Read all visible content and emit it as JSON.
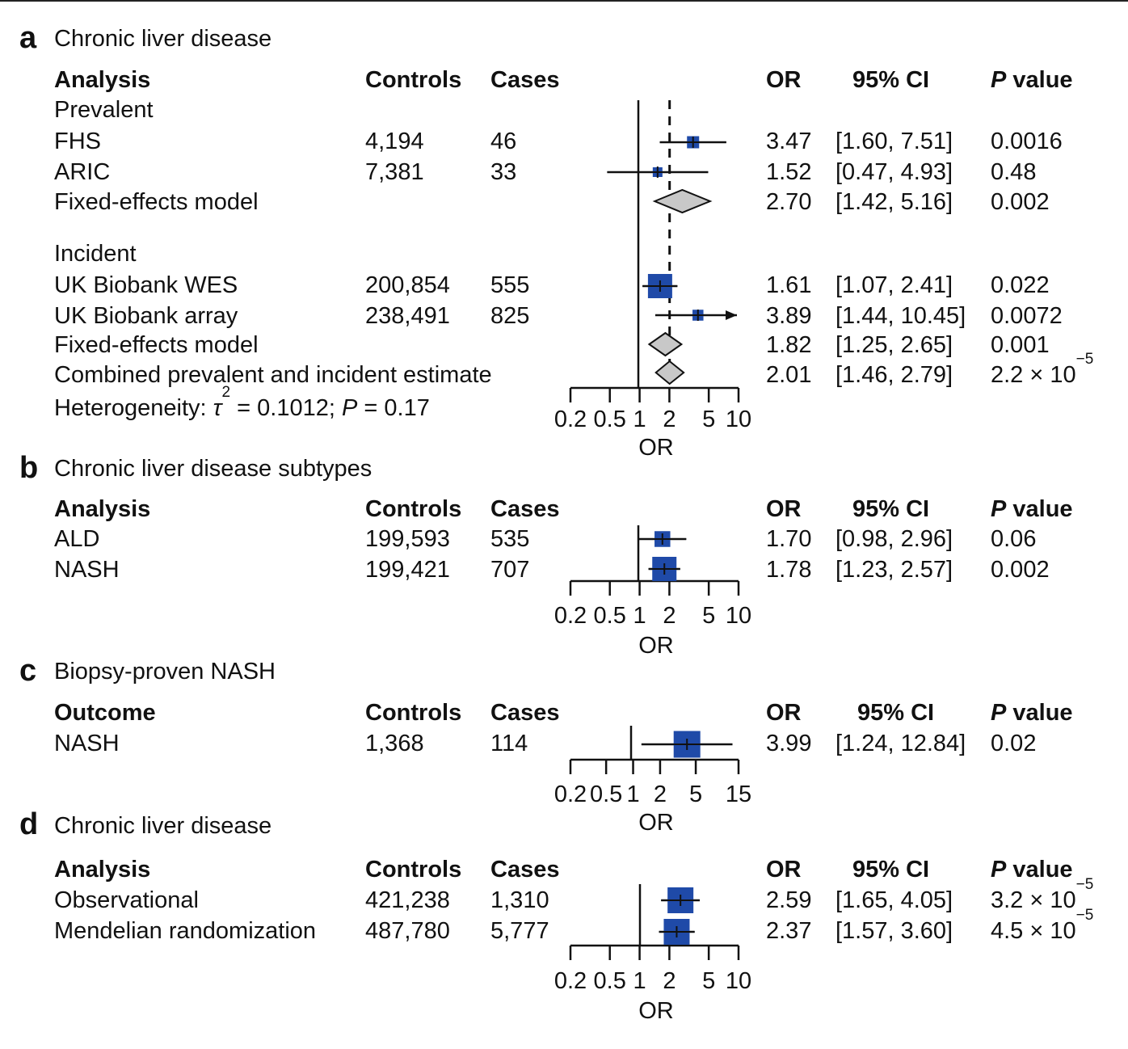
{
  "colors": {
    "square": "#1f4aa8",
    "diamond": "#c8c8c8",
    "line": "#111111"
  },
  "panels": [
    {
      "letter": "a",
      "title": "Chronic liver disease",
      "headers": {
        "label": "Analysis",
        "controls": "Controls",
        "cases": "Cases",
        "or": "OR",
        "ci": "95% CI",
        "p_bold": "P",
        "p_rest": " value"
      },
      "groups": [
        {
          "name": "Prevalent",
          "rows": [
            {
              "label": "FHS",
              "controls": "4,194",
              "cases": "46",
              "or": "3.47",
              "ci": "[1.60, 7.51]",
              "p": "0.0016"
            },
            {
              "label": "ARIC",
              "controls": "7,381",
              "cases": "33",
              "or": "1.52",
              "ci": "[0.47, 4.93]",
              "p": "0.48"
            },
            {
              "label": "Fixed-effects model",
              "controls": "",
              "cases": "",
              "or": "2.70",
              "ci": "[1.42, 5.16]",
              "p": "0.002"
            }
          ]
        },
        {
          "name": "Incident",
          "rows": [
            {
              "label": "UK Biobank WES",
              "controls": "200,854",
              "cases": "555",
              "or": "1.61",
              "ci": "[1.07, 2.41]",
              "p": "0.022"
            },
            {
              "label": "UK Biobank array",
              "controls": "238,491",
              "cases": "825",
              "or": "3.89",
              "ci": "[1.44, 10.45]",
              "p": "0.0072"
            },
            {
              "label": "Fixed-effects model",
              "controls": "",
              "cases": "",
              "or": "1.82",
              "ci": "[1.25, 2.65]",
              "p": "0.001"
            },
            {
              "label": "Combined prevalent and incident estimate",
              "controls": "",
              "cases": "",
              "or": "2.01",
              "ci": "[1.46, 2.79]",
              "p_base": "2.2 × 10",
              "p_exp": "−5"
            }
          ]
        }
      ],
      "heterogeneity": {
        "prefix": "Heterogeneity: ",
        "tau": "τ",
        "tau_exp": "2",
        "tau_value": " = 0.1012; ",
        "p_label": "P",
        "p_value": " = 0.17"
      },
      "axis_ticks": [
        "0.2",
        "0.5",
        "1",
        "2",
        "5",
        "10"
      ],
      "axis_label": "OR"
    },
    {
      "letter": "b",
      "title": "Chronic liver disease subtypes",
      "headers": {
        "label": "Analysis",
        "controls": "Controls",
        "cases": "Cases",
        "or": "OR",
        "ci": "95% CI",
        "p_bold": "P",
        "p_rest": " value"
      },
      "rows": [
        {
          "label": "ALD",
          "controls": "199,593",
          "cases": "535",
          "or": "1.70",
          "ci": "[0.98, 2.96]",
          "p": "0.06"
        },
        {
          "label": "NASH",
          "controls": "199,421",
          "cases": "707",
          "or": "1.78",
          "ci": "[1.23, 2.57]",
          "p": "0.002"
        }
      ],
      "axis_ticks": [
        "0.2",
        "0.5",
        "1",
        "2",
        "5",
        "10"
      ],
      "axis_label": "OR"
    },
    {
      "letter": "c",
      "title": "Biopsy-proven NASH",
      "headers": {
        "label": "Outcome",
        "controls": "Controls",
        "cases": "Cases",
        "or": "OR",
        "ci": "95% CI",
        "p_bold": "P",
        "p_rest": " value"
      },
      "rows": [
        {
          "label": "NASH",
          "controls": "1,368",
          "cases": "114",
          "or": "3.99",
          "ci": "[1.24, 12.84]",
          "p": "0.02"
        }
      ],
      "axis_ticks": [
        "0.2",
        "0.5",
        "1",
        "2",
        "5",
        "15"
      ],
      "axis_label": "OR"
    },
    {
      "letter": "d",
      "title": "Chronic liver disease",
      "headers": {
        "label": "Analysis",
        "controls": "Controls",
        "cases": "Cases",
        "or": "OR",
        "ci": "95% CI",
        "p_bold": "P",
        "p_rest": " value"
      },
      "rows": [
        {
          "label": "Observational",
          "controls": "421,238",
          "cases": "1,310",
          "or": "2.59",
          "ci": "[1.65, 4.05]",
          "p_base": "3.2 × 10",
          "p_exp": "−5"
        },
        {
          "label": "Mendelian randomization",
          "controls": "487,780",
          "cases": "5,777",
          "or": "2.37",
          "ci": "[1.57, 3.60]",
          "p_base": "4.5 × 10",
          "p_exp": "−5"
        }
      ],
      "axis_ticks": [
        "0.2",
        "0.5",
        "1",
        "2",
        "5",
        "10"
      ],
      "axis_label": "OR"
    }
  ],
  "chart_data": [
    {
      "type": "forest",
      "title": "Chronic liver disease",
      "xlabel": "OR",
      "xscale": "log",
      "xlim": [
        0.2,
        10
      ],
      "reference_line": 1,
      "pooled_reference": 2.01,
      "series": [
        {
          "name": "FHS",
          "or": 3.47,
          "lo": 1.6,
          "hi": 7.51,
          "marker": "square",
          "weight": 0.5
        },
        {
          "name": "ARIC",
          "or": 1.52,
          "lo": 0.47,
          "hi": 4.93,
          "marker": "square",
          "weight": 0.4
        },
        {
          "name": "Fixed-effects model (prevalent)",
          "or": 2.7,
          "lo": 1.42,
          "hi": 5.16,
          "marker": "diamond"
        },
        {
          "name": "UK Biobank WES",
          "or": 1.61,
          "lo": 1.07,
          "hi": 2.41,
          "marker": "square",
          "weight": 1.0
        },
        {
          "name": "UK Biobank array",
          "or": 3.89,
          "lo": 1.44,
          "hi": 10.45,
          "marker": "square",
          "weight": 0.45,
          "arrow": true
        },
        {
          "name": "Fixed-effects model (incident)",
          "or": 1.82,
          "lo": 1.25,
          "hi": 2.65,
          "marker": "diamond"
        },
        {
          "name": "Combined prevalent and incident estimate",
          "or": 2.01,
          "lo": 1.46,
          "hi": 2.79,
          "marker": "diamond"
        }
      ]
    },
    {
      "type": "forest",
      "title": "Chronic liver disease subtypes",
      "xlabel": "OR",
      "xscale": "log",
      "xlim": [
        0.2,
        10
      ],
      "reference_line": 1,
      "series": [
        {
          "name": "ALD",
          "or": 1.7,
          "lo": 0.98,
          "hi": 2.96,
          "marker": "square",
          "weight": 0.65
        },
        {
          "name": "NASH",
          "or": 1.78,
          "lo": 1.23,
          "hi": 2.57,
          "marker": "square",
          "weight": 1.0
        }
      ]
    },
    {
      "type": "forest",
      "title": "Biopsy-proven NASH",
      "xlabel": "OR",
      "xscale": "log",
      "xlim": [
        0.2,
        15
      ],
      "reference_line": 1,
      "series": [
        {
          "name": "NASH",
          "or": 3.99,
          "lo": 1.24,
          "hi": 12.84,
          "marker": "square",
          "weight": 1.0
        }
      ]
    },
    {
      "type": "forest",
      "title": "Chronic liver disease",
      "xlabel": "OR",
      "xscale": "log",
      "xlim": [
        0.2,
        10
      ],
      "reference_line": 1,
      "series": [
        {
          "name": "Observational",
          "or": 2.59,
          "lo": 1.65,
          "hi": 4.05,
          "marker": "square",
          "weight": 1.0
        },
        {
          "name": "Mendelian randomization",
          "or": 2.37,
          "lo": 1.57,
          "hi": 3.6,
          "marker": "square",
          "weight": 1.0
        }
      ]
    }
  ]
}
